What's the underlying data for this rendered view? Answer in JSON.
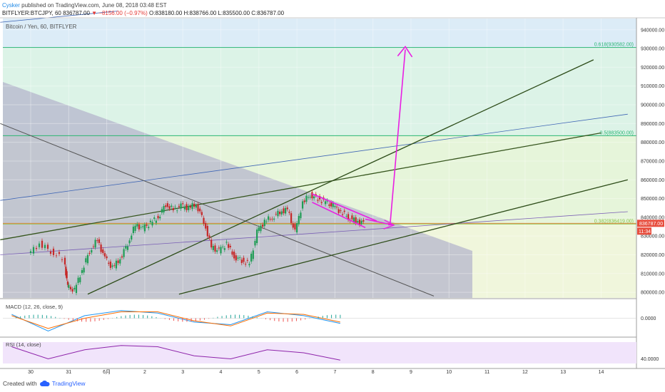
{
  "header": {
    "author": "Cysker",
    "published_text": "published on TradingView.com, June 08, 2018 03:48 EST",
    "symbol": "BITFLYER:BTCJPY, 60",
    "price": "836787.00",
    "change_text": "▼ −8156.00 (−0.97%)",
    "ohlc": "O:838180.00 H:838766.00 L:835500.00 C:836787.00"
  },
  "chart_data": {
    "type": "candlestick",
    "title": "Bitcoin / Yen, 60, BITFLYER",
    "y_ticks": [
      800000,
      810000,
      820000,
      830000,
      840000,
      850000,
      860000,
      870000,
      880000,
      890000,
      900000,
      910000,
      920000,
      930000,
      940000
    ],
    "ylim": [
      797000,
      946000
    ],
    "x_ticks": [
      "30",
      "31",
      "6月",
      "2",
      "3",
      "4",
      "5",
      "6",
      "7",
      "8",
      "9",
      "10",
      "11",
      "12",
      "13",
      "14"
    ],
    "current_price": {
      "value": 836787,
      "label": "836787.00",
      "countdown": "11:34"
    },
    "fib_levels": [
      {
        "ratio": "0.618",
        "value": 930582,
        "label": "0.618(930582.00)"
      },
      {
        "ratio": "0.5",
        "value": 883500,
        "label": "0.5(883500.00)"
      },
      {
        "ratio": "0.382",
        "value": 836419,
        "label": "0.382(836419.00)"
      }
    ],
    "price_path": [
      [
        0,
        820000
      ],
      [
        0.3,
        826000
      ],
      [
        0.6,
        822000
      ],
      [
        0.9,
        818000
      ],
      [
        1.0,
        803000
      ],
      [
        1.2,
        801000
      ],
      [
        1.4,
        812000
      ],
      [
        1.6,
        822000
      ],
      [
        1.8,
        828000
      ],
      [
        2.0,
        818000
      ],
      [
        2.2,
        813000
      ],
      [
        2.4,
        818000
      ],
      [
        2.6,
        826000
      ],
      [
        2.8,
        836000
      ],
      [
        3.0,
        834000
      ],
      [
        3.2,
        837000
      ],
      [
        3.4,
        840000
      ],
      [
        3.6,
        847000
      ],
      [
        3.8,
        844000
      ],
      [
        4.0,
        846000
      ],
      [
        4.2,
        845000
      ],
      [
        4.4,
        847000
      ],
      [
        4.6,
        838000
      ],
      [
        4.8,
        824000
      ],
      [
        5.0,
        822000
      ],
      [
        5.2,
        826000
      ],
      [
        5.4,
        819000
      ],
      [
        5.6,
        817000
      ],
      [
        5.8,
        815000
      ],
      [
        6.0,
        832000
      ],
      [
        6.2,
        838000
      ],
      [
        6.4,
        840000
      ],
      [
        6.6,
        843000
      ],
      [
        6.8,
        844000
      ],
      [
        7.0,
        832000
      ],
      [
        7.2,
        848000
      ],
      [
        7.4,
        852000
      ],
      [
        7.6,
        850000
      ],
      [
        7.8,
        848000
      ],
      [
        8.0,
        846000
      ],
      [
        8.2,
        843000
      ],
      [
        8.4,
        840000
      ],
      [
        8.6,
        838000
      ],
      [
        8.8,
        837000
      ]
    ],
    "macd": {
      "label": "MACD (12, 26, close, 9)",
      "y_tick": "0.0000",
      "path_a": [
        [
          0,
          0.3
        ],
        [
          1,
          -1
        ],
        [
          2,
          0.2
        ],
        [
          3,
          0.6
        ],
        [
          4,
          0.4
        ],
        [
          5,
          -0.3
        ],
        [
          6,
          -0.5
        ],
        [
          7,
          0.5
        ],
        [
          8,
          0.2
        ],
        [
          9,
          -0.4
        ]
      ],
      "path_b": [
        [
          0,
          0.2
        ],
        [
          1,
          -0.8
        ],
        [
          2,
          0
        ],
        [
          3,
          0.5
        ],
        [
          4,
          0.5
        ],
        [
          5,
          -0.2
        ],
        [
          6,
          -0.6
        ],
        [
          7,
          0.4
        ],
        [
          8,
          0.3
        ],
        [
          9,
          -0.3
        ]
      ]
    },
    "rsi": {
      "label": "RSI (14, close)",
      "y_tick": "40.0000",
      "path": [
        [
          0,
          60
        ],
        [
          1,
          40
        ],
        [
          2,
          55
        ],
        [
          3,
          62
        ],
        [
          4,
          60
        ],
        [
          5,
          45
        ],
        [
          6,
          40
        ],
        [
          7,
          55
        ],
        [
          8,
          50
        ],
        [
          9,
          38
        ]
      ]
    }
  },
  "footer": {
    "created_with": "Created with",
    "brand": "TradingView"
  }
}
